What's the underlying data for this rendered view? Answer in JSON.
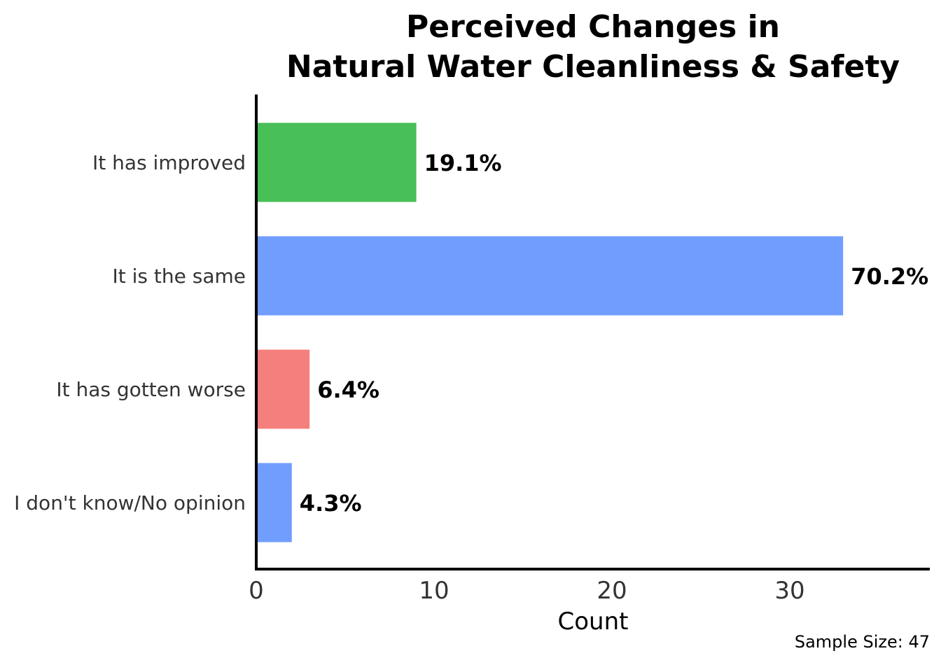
{
  "chart_data": {
    "type": "bar",
    "orientation": "horizontal",
    "title": [
      "Perceived Changes in",
      "Natural Water Cleanliness & Safety"
    ],
    "categories": [
      "It has improved",
      "It is the same",
      "It has gotten worse",
      "I don't know/No opinion"
    ],
    "values": [
      9,
      33,
      3,
      2
    ],
    "labels": [
      "19.1%",
      "70.2%",
      "6.4%",
      "4.3%"
    ],
    "colors": [
      "#48bf57",
      "#719dff",
      "#f47f7c",
      "#719dff"
    ],
    "xlabel": "Count",
    "ylabel": "",
    "xlim": [
      0,
      38
    ],
    "xticks": [
      0,
      10,
      20,
      30
    ],
    "xtick_labels": [
      "0",
      "10",
      "20",
      "30"
    ],
    "grid": false,
    "caption": "Sample Size: 47"
  }
}
